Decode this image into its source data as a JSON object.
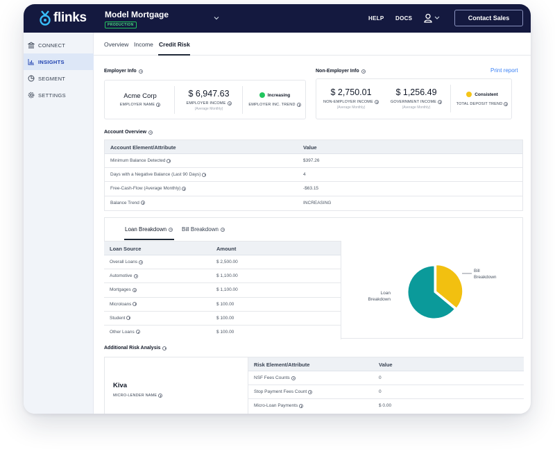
{
  "app": {
    "logo_text": "flinks",
    "title": "Model Mortgage",
    "env_badge": "PRODUCTION",
    "nav_help": "HELP",
    "nav_docs": "DOCS",
    "contact_label": "Contact Sales"
  },
  "sidebar": {
    "items": [
      {
        "label": "CONNECT",
        "icon": "bank-icon"
      },
      {
        "label": "INSIGHTS",
        "icon": "bar-chart-icon",
        "active": true
      },
      {
        "label": "SEGMENT",
        "icon": "pie-chart-icon"
      },
      {
        "label": "SETTINGS",
        "icon": "gear-icon"
      }
    ]
  },
  "tabs": [
    "Overview",
    "Income",
    "Credit Risk"
  ],
  "active_tab": "Credit Risk",
  "print_report": "Print report",
  "employer_info": {
    "title": "Employer Info",
    "name_value": "Acme Corp",
    "name_label": "EMPLOYER NAME",
    "income_value": "$ 6,947.63",
    "income_label": "EMPLOYER INCOME",
    "income_sub": "(Average Monthly)",
    "trend_value": "Increasing",
    "trend_label": "EMPLOYER INC. TREND",
    "trend_color": "#22c55e"
  },
  "non_employer_info": {
    "title": "Non-Employer Info",
    "non_emp_value": "$ 2,750.01",
    "non_emp_label": "NON-EMPLOYER INCOME",
    "non_emp_sub": "(Average Monthly)",
    "gov_value": "$ 1,256.49",
    "gov_label": "GOVERNMENT INCOME",
    "gov_sub": "(Average Monthly)",
    "trend_value": "Consistent",
    "trend_label": "TOTAL DEPOSIT TREND",
    "trend_color": "#f5c518"
  },
  "account_overview": {
    "title": "Account Overview",
    "col_element": "Account Element/Attribute",
    "col_value": "Value",
    "rows": [
      {
        "label": "Minimum Balance Detected",
        "value": "$397.26"
      },
      {
        "label": "Days with a Negative Balance (Last 90 Days)",
        "value": "4"
      },
      {
        "label": "Free-Cash-Flow (Average Monthly)",
        "value": "-$63.15"
      },
      {
        "label": "Balance Trend",
        "value": "INCREASING"
      }
    ]
  },
  "breakdown": {
    "tab_loan": "Loan Breakdown",
    "tab_bill": "Bill Breakdown",
    "col_source": "Loan Source",
    "col_amount": "Amount",
    "rows": [
      {
        "label": "Overall Loans",
        "value": "$ 2,500.00"
      },
      {
        "label": "Automotive",
        "value": "$ 1,100.00"
      },
      {
        "label": "Mortgages",
        "value": "$ 1,100.00"
      },
      {
        "label": "Microloans",
        "value": "$ 100.00"
      },
      {
        "label": "Student",
        "value": "$ 100.00"
      },
      {
        "label": "Other Loans",
        "value": "$ 100.00"
      }
    ]
  },
  "chart_data": {
    "type": "pie",
    "slices": [
      {
        "name": "Loan Breakdown",
        "value": 0.64,
        "color": "#0b9a9a"
      },
      {
        "name": "Bill Breakdown",
        "value": 0.36,
        "color": "#f2c010"
      }
    ]
  },
  "pie_labels": {
    "loan_line1": "Loan",
    "loan_line2": "Breakdown",
    "bill_line1": "Bill",
    "bill_line2": "Breakdown"
  },
  "risk": {
    "title": "Additional Risk Analysis",
    "lender_name": "Kiva",
    "lender_label": "MICRO-LENDER NAME",
    "col_element": "Risk Element/Attribute",
    "col_value": "Value",
    "rows": [
      {
        "label": "NSF Fees Counts",
        "value": "0"
      },
      {
        "label": "Stop Payment Fees Count",
        "value": "0"
      },
      {
        "label": "Micro-Loan Payments",
        "value": "$ 0.00"
      }
    ]
  }
}
